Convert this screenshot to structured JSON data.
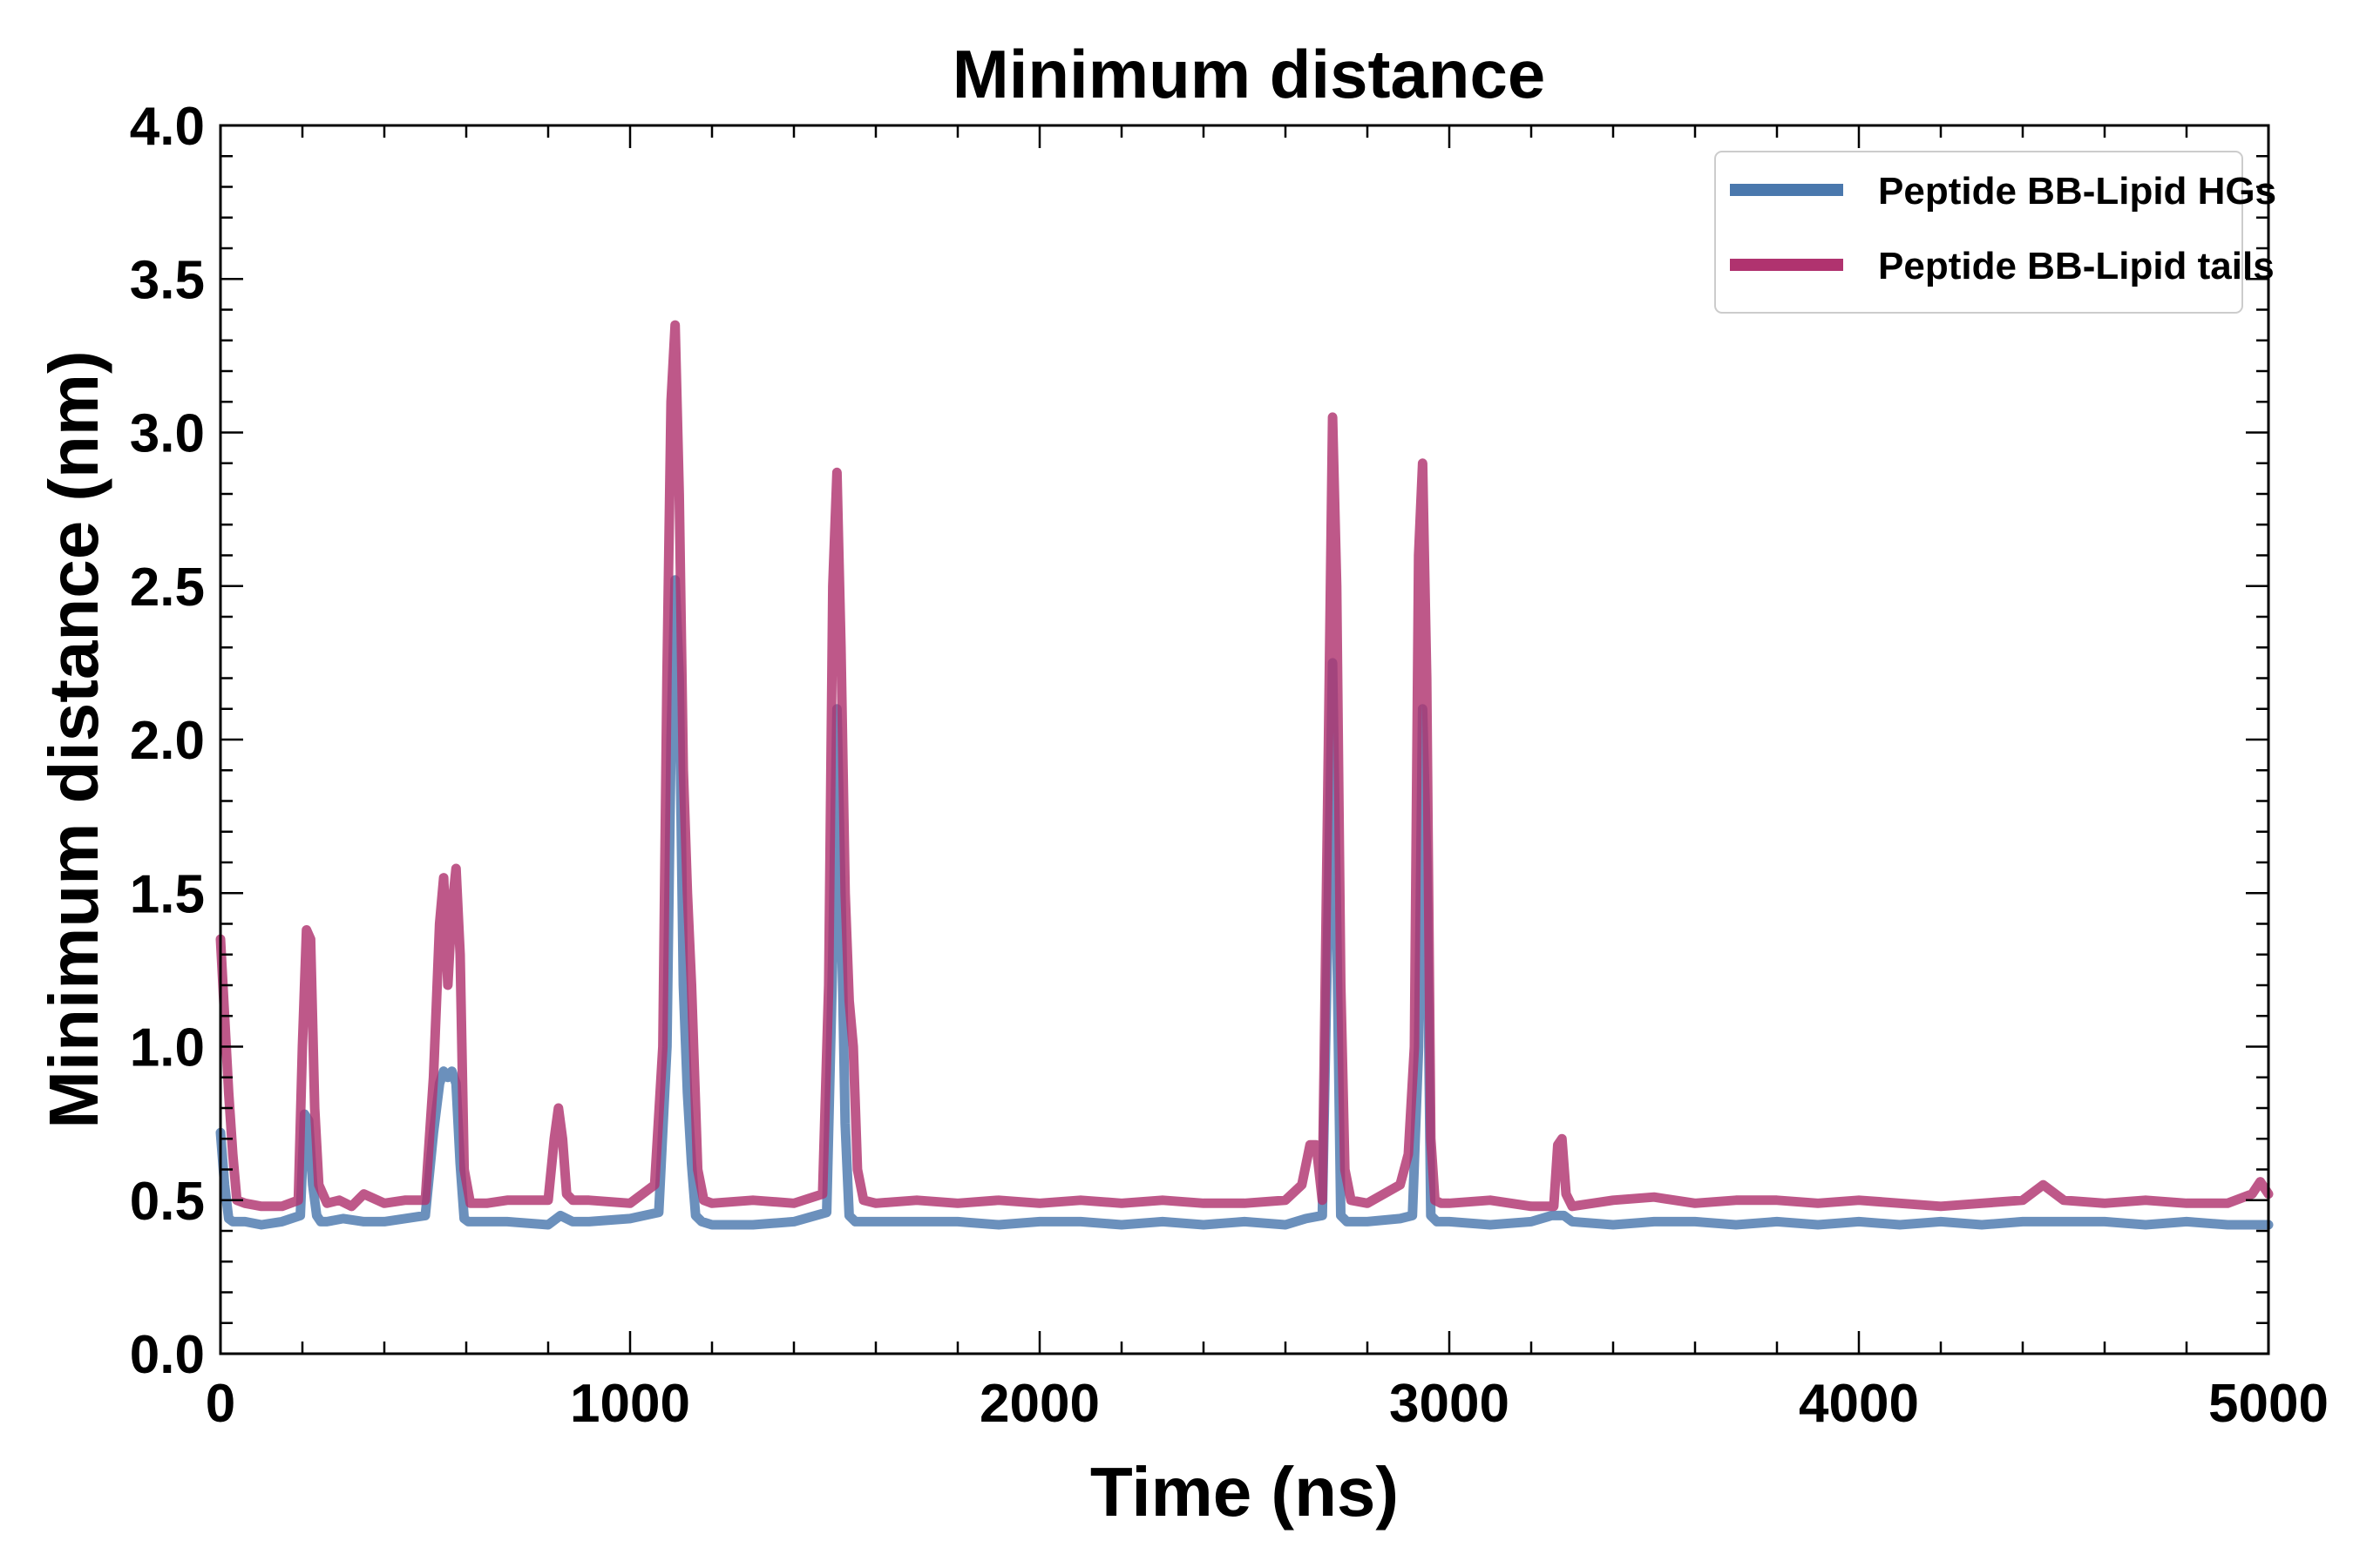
{
  "chart_data": {
    "type": "line",
    "title": "Minimum distance",
    "xlabel": "Time (ns)",
    "ylabel": "Minimum distance (nm)",
    "xlim": [
      0,
      5000
    ],
    "ylim": [
      0.0,
      4.0
    ],
    "xticks": [
      "0",
      "1000",
      "2000",
      "3000",
      "4000",
      "5000"
    ],
    "yticks": [
      "0.0",
      "0.5",
      "1.0",
      "1.5",
      "2.0",
      "2.5",
      "3.0",
      "3.5",
      "4.0"
    ],
    "grid": false,
    "legend_position": "top-right",
    "series": [
      {
        "name": "Peptide BB-Lipid HGs",
        "color": "#4a78ad",
        "x": [
          0,
          10,
          20,
          30,
          60,
          100,
          150,
          195,
          205,
          215,
          225,
          235,
          245,
          260,
          300,
          350,
          400,
          450,
          500,
          520,
          535,
          545,
          555,
          565,
          575,
          585,
          595,
          605,
          620,
          700,
          800,
          830,
          860,
          900,
          1000,
          1070,
          1090,
          1100,
          1110,
          1120,
          1130,
          1140,
          1150,
          1160,
          1175,
          1200,
          1300,
          1400,
          1480,
          1495,
          1505,
          1515,
          1525,
          1535,
          1550,
          1570,
          1600,
          1700,
          1800,
          1900,
          2000,
          2100,
          2200,
          2300,
          2400,
          2500,
          2600,
          2650,
          2690,
          2705,
          2715,
          2725,
          2735,
          2750,
          2800,
          2880,
          2910,
          2925,
          2935,
          2945,
          2955,
          2970,
          3000,
          3100,
          3200,
          3250,
          3280,
          3300,
          3400,
          3500,
          3600,
          3700,
          3800,
          3900,
          4000,
          4100,
          4200,
          4300,
          4400,
          4500,
          4600,
          4700,
          4800,
          4900,
          5000
        ],
        "y": [
          0.72,
          0.55,
          0.44,
          0.43,
          0.43,
          0.42,
          0.43,
          0.45,
          0.78,
          0.76,
          0.55,
          0.45,
          0.43,
          0.43,
          0.44,
          0.43,
          0.43,
          0.44,
          0.45,
          0.72,
          0.88,
          0.92,
          0.9,
          0.92,
          0.88,
          0.62,
          0.44,
          0.43,
          0.43,
          0.43,
          0.42,
          0.45,
          0.43,
          0.43,
          0.44,
          0.46,
          1.0,
          2.0,
          2.52,
          2.2,
          1.2,
          0.85,
          0.62,
          0.45,
          0.43,
          0.42,
          0.42,
          0.43,
          0.46,
          1.3,
          2.1,
          1.5,
          0.75,
          0.45,
          0.43,
          0.43,
          0.43,
          0.43,
          0.43,
          0.42,
          0.43,
          0.43,
          0.42,
          0.43,
          0.42,
          0.43,
          0.42,
          0.44,
          0.45,
          1.5,
          2.25,
          1.4,
          0.45,
          0.43,
          0.43,
          0.44,
          0.45,
          1.0,
          2.1,
          1.6,
          0.45,
          0.43,
          0.43,
          0.42,
          0.43,
          0.45,
          0.45,
          0.43,
          0.42,
          0.43,
          0.43,
          0.42,
          0.43,
          0.42,
          0.43,
          0.42,
          0.43,
          0.42,
          0.43,
          0.43,
          0.43,
          0.42,
          0.43,
          0.42,
          0.42
        ]
      },
      {
        "name": "Peptide BB-Lipid tails",
        "color": "#b0336f",
        "x": [
          0,
          10,
          20,
          30,
          40,
          60,
          100,
          150,
          190,
          200,
          210,
          220,
          230,
          240,
          260,
          290,
          320,
          350,
          400,
          450,
          500,
          520,
          535,
          545,
          555,
          565,
          575,
          585,
          595,
          610,
          650,
          700,
          800,
          815,
          825,
          835,
          845,
          860,
          900,
          1000,
          1060,
          1080,
          1090,
          1100,
          1110,
          1120,
          1130,
          1140,
          1150,
          1165,
          1180,
          1200,
          1300,
          1400,
          1470,
          1485,
          1495,
          1505,
          1515,
          1525,
          1535,
          1545,
          1555,
          1570,
          1600,
          1700,
          1800,
          1900,
          2000,
          2100,
          2200,
          2300,
          2400,
          2500,
          2600,
          2640,
          2660,
          2675,
          2690,
          2705,
          2715,
          2725,
          2735,
          2745,
          2760,
          2800,
          2880,
          2900,
          2915,
          2925,
          2935,
          2945,
          2955,
          2965,
          2980,
          3000,
          3100,
          3200,
          3255,
          3265,
          3275,
          3285,
          3300,
          3400,
          3500,
          3600,
          3700,
          3800,
          3900,
          4000,
          4100,
          4200,
          4300,
          4400,
          4450,
          4500,
          4600,
          4700,
          4800,
          4900,
          4960,
          4980,
          5000
        ],
        "y": [
          1.35,
          1.1,
          0.85,
          0.65,
          0.5,
          0.49,
          0.48,
          0.48,
          0.5,
          1.0,
          1.38,
          1.35,
          0.8,
          0.55,
          0.49,
          0.5,
          0.48,
          0.52,
          0.49,
          0.5,
          0.5,
          0.9,
          1.4,
          1.55,
          1.2,
          1.45,
          1.58,
          1.3,
          0.6,
          0.49,
          0.49,
          0.5,
          0.5,
          0.7,
          0.8,
          0.7,
          0.52,
          0.5,
          0.5,
          0.49,
          0.55,
          1.0,
          2.2,
          3.1,
          3.35,
          2.8,
          1.9,
          1.5,
          1.2,
          0.6,
          0.5,
          0.49,
          0.5,
          0.49,
          0.52,
          1.2,
          2.5,
          2.87,
          2.3,
          1.5,
          1.15,
          1.0,
          0.6,
          0.5,
          0.49,
          0.5,
          0.49,
          0.5,
          0.49,
          0.5,
          0.49,
          0.5,
          0.49,
          0.49,
          0.5,
          0.55,
          0.68,
          0.68,
          0.5,
          2.0,
          3.05,
          2.5,
          1.2,
          0.6,
          0.5,
          0.49,
          0.55,
          0.65,
          1.0,
          2.6,
          2.9,
          2.2,
          0.7,
          0.5,
          0.49,
          0.49,
          0.5,
          0.48,
          0.48,
          0.68,
          0.7,
          0.52,
          0.48,
          0.5,
          0.51,
          0.49,
          0.5,
          0.5,
          0.49,
          0.5,
          0.49,
          0.48,
          0.49,
          0.5,
          0.55,
          0.5,
          0.49,
          0.5,
          0.49,
          0.49,
          0.52,
          0.56,
          0.52
        ]
      }
    ]
  }
}
